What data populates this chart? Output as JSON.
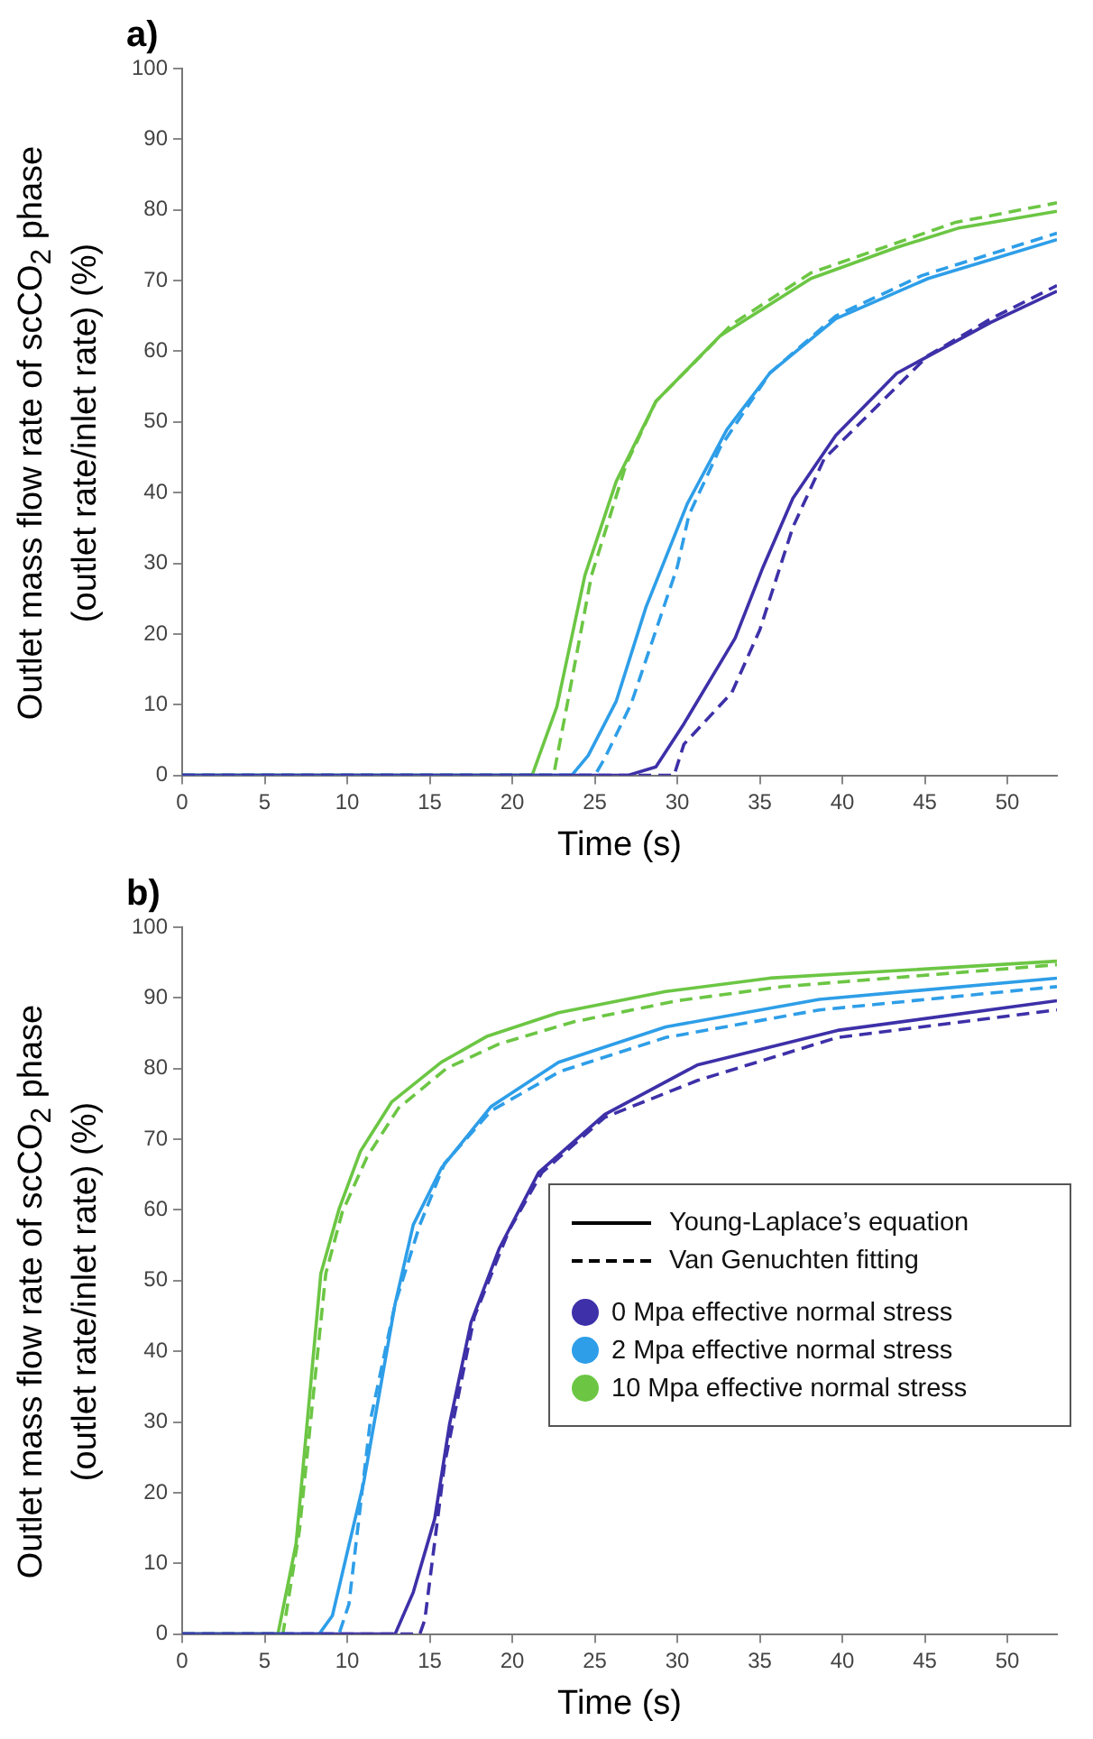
{
  "chart_data": [
    {
      "type": "line",
      "title": "a)",
      "xlabel": "Time (s)",
      "ylabel": "Outlet mass flow rate of scCO$_{2}$ phase (outlet rate/inlet rate) (%)",
      "xlim": [
        0,
        53
      ],
      "xticks": [
        0,
        5,
        10,
        15,
        20,
        25,
        30,
        35,
        40,
        45,
        50
      ],
      "ylim": [
        0,
        100
      ],
      "yticks": [
        0,
        10,
        20,
        30,
        40,
        50,
        60,
        70,
        80,
        90,
        100
      ],
      "grid": false,
      "marker": "none",
      "series": [
        {
          "color": "#3d30a8",
          "line_style": "solid",
          "x": [
            0,
            27,
            28.7,
            30.4,
            33.5,
            35.2,
            37,
            39.6,
            43.3,
            49,
            53
          ],
          "values": [
            0,
            0,
            1.2,
            7.3,
            19.4,
            29.5,
            39.2,
            48.1,
            56.9,
            64.1,
            68.5
          ]
        },
        {
          "color": "#3d30a8",
          "line_style": "dashed",
          "x": [
            0,
            29.8,
            30.4,
            33.3,
            35,
            37,
            38.9,
            45.2,
            49,
            53
          ],
          "values": [
            0,
            0,
            4.4,
            11.7,
            20.6,
            35.1,
            44.8,
            59.4,
            64.6,
            69.3
          ]
        },
        {
          "color": "#2e9ee8",
          "line_style": "solid",
          "x": [
            0,
            23.6,
            24.6,
            26.3,
            28.1,
            30.6,
            33,
            35.6,
            39.6,
            45.2,
            53
          ],
          "values": [
            0,
            0,
            2.8,
            10.5,
            23.8,
            38.4,
            48.9,
            56.9,
            64.6,
            70.3,
            75.8
          ]
        },
        {
          "color": "#2e9ee8",
          "line_style": "dashed",
          "x": [
            0,
            25,
            25.6,
            27.2,
            30,
            30.7,
            32.6,
            35.6,
            39.6,
            44.8,
            53
          ],
          "values": [
            0,
            0,
            2.4,
            10.1,
            29.5,
            36.8,
            46.4,
            56.9,
            65,
            70.7,
            76.7
          ]
        },
        {
          "color": "#6cc644",
          "line_style": "solid",
          "x": [
            0,
            21.2,
            22.7,
            24.4,
            26.3,
            28.7,
            32.6,
            38.1,
            43.3,
            47,
            53
          ],
          "values": [
            0,
            0,
            9.7,
            28.3,
            41.6,
            52.9,
            62.2,
            70.3,
            74.7,
            77.4,
            79.8
          ]
        },
        {
          "color": "#6cc644",
          "line_style": "dashed",
          "x": [
            0,
            22.5,
            23.3,
            24.8,
            26.9,
            28.7,
            33.3,
            38.1,
            46.8,
            53
          ],
          "values": [
            0,
            0,
            9.7,
            28.3,
            44,
            52.9,
            63.8,
            71.1,
            78.2,
            81
          ]
        }
      ]
    },
    {
      "type": "line",
      "title": "b)",
      "xlabel": "Time (s)",
      "ylabel": "Outlet mass flow rate of scCO$_{2}$ phase (outlet rate/inlet rate) (%)",
      "xlim": [
        0,
        53
      ],
      "xticks": [
        0,
        5,
        10,
        15,
        20,
        25,
        30,
        35,
        40,
        45,
        50
      ],
      "ylim": [
        0,
        100
      ],
      "yticks": [
        0,
        10,
        20,
        30,
        40,
        50,
        60,
        70,
        80,
        90,
        100
      ],
      "grid": false,
      "marker": "none",
      "annotations": [
        "Young-Laplace’s equation",
        "Van Genuchten fitting",
        "0 Mpa effective normal stress",
        "2 Mpa effective normal stress",
        "10 Mpa effective normal stress"
      ],
      "series": [
        {
          "color": "#3d30a8",
          "line_style": "solid",
          "x": [
            0,
            12.9,
            14,
            15.3,
            16.2,
            17.5,
            19.2,
            21.6,
            25.6,
            31.2,
            39.7,
            53
          ],
          "values": [
            0,
            0,
            5.9,
            16.3,
            29.7,
            44.1,
            54.5,
            65.3,
            73.5,
            80.5,
            85.4,
            89.6
          ]
        },
        {
          "color": "#3d30a8",
          "line_style": "dashed",
          "x": [
            0,
            14.4,
            14.7,
            15.9,
            17.7,
            19.8,
            21.8,
            25.6,
            31.2,
            39.7,
            53
          ],
          "values": [
            0,
            0,
            2,
            24.1,
            44.9,
            57.1,
            65.3,
            73.1,
            78.3,
            84.4,
            88.3
          ]
        },
        {
          "color": "#2e9ee8",
          "line_style": "solid",
          "x": [
            0,
            8.3,
            9.1,
            11,
            12.9,
            14,
            15.7,
            18.7,
            22.8,
            29.3,
            38.6,
            53
          ],
          "values": [
            0,
            0,
            2.6,
            21.5,
            46.7,
            57.9,
            65.9,
            74.6,
            80.9,
            85.9,
            89.8,
            92.8
          ]
        },
        {
          "color": "#2e9ee8",
          "line_style": "dashed",
          "x": [
            0,
            9.5,
            10.1,
            11.4,
            12.9,
            14.4,
            15.9,
            18.7,
            22.9,
            29.3,
            38.6,
            53
          ],
          "values": [
            0,
            0,
            4.2,
            30.2,
            46.7,
            57.9,
            66.6,
            74,
            79.6,
            84.4,
            88.3,
            91.6
          ]
        },
        {
          "color": "#6cc644",
          "line_style": "solid",
          "x": [
            0,
            5.8,
            6.9,
            8.4,
            9.5,
            10.8,
            12.7,
            15.7,
            18.5,
            22.8,
            29.3,
            35.6,
            53
          ],
          "values": [
            0,
            0,
            12.8,
            51,
            60.1,
            68.3,
            75.3,
            80.9,
            84.6,
            87.9,
            90.9,
            92.8,
            95.2
          ]
        },
        {
          "color": "#6cc644",
          "line_style": "dashed",
          "x": [
            0,
            6.1,
            7.1,
            8.7,
            9.7,
            11.2,
            13.1,
            16,
            19.2,
            23.7,
            30,
            36.4,
            53
          ],
          "values": [
            0,
            0,
            14.6,
            51,
            59.7,
            67.5,
            74.4,
            80,
            83.5,
            86.6,
            89.6,
            91.6,
            94.7
          ]
        }
      ]
    }
  ]
}
